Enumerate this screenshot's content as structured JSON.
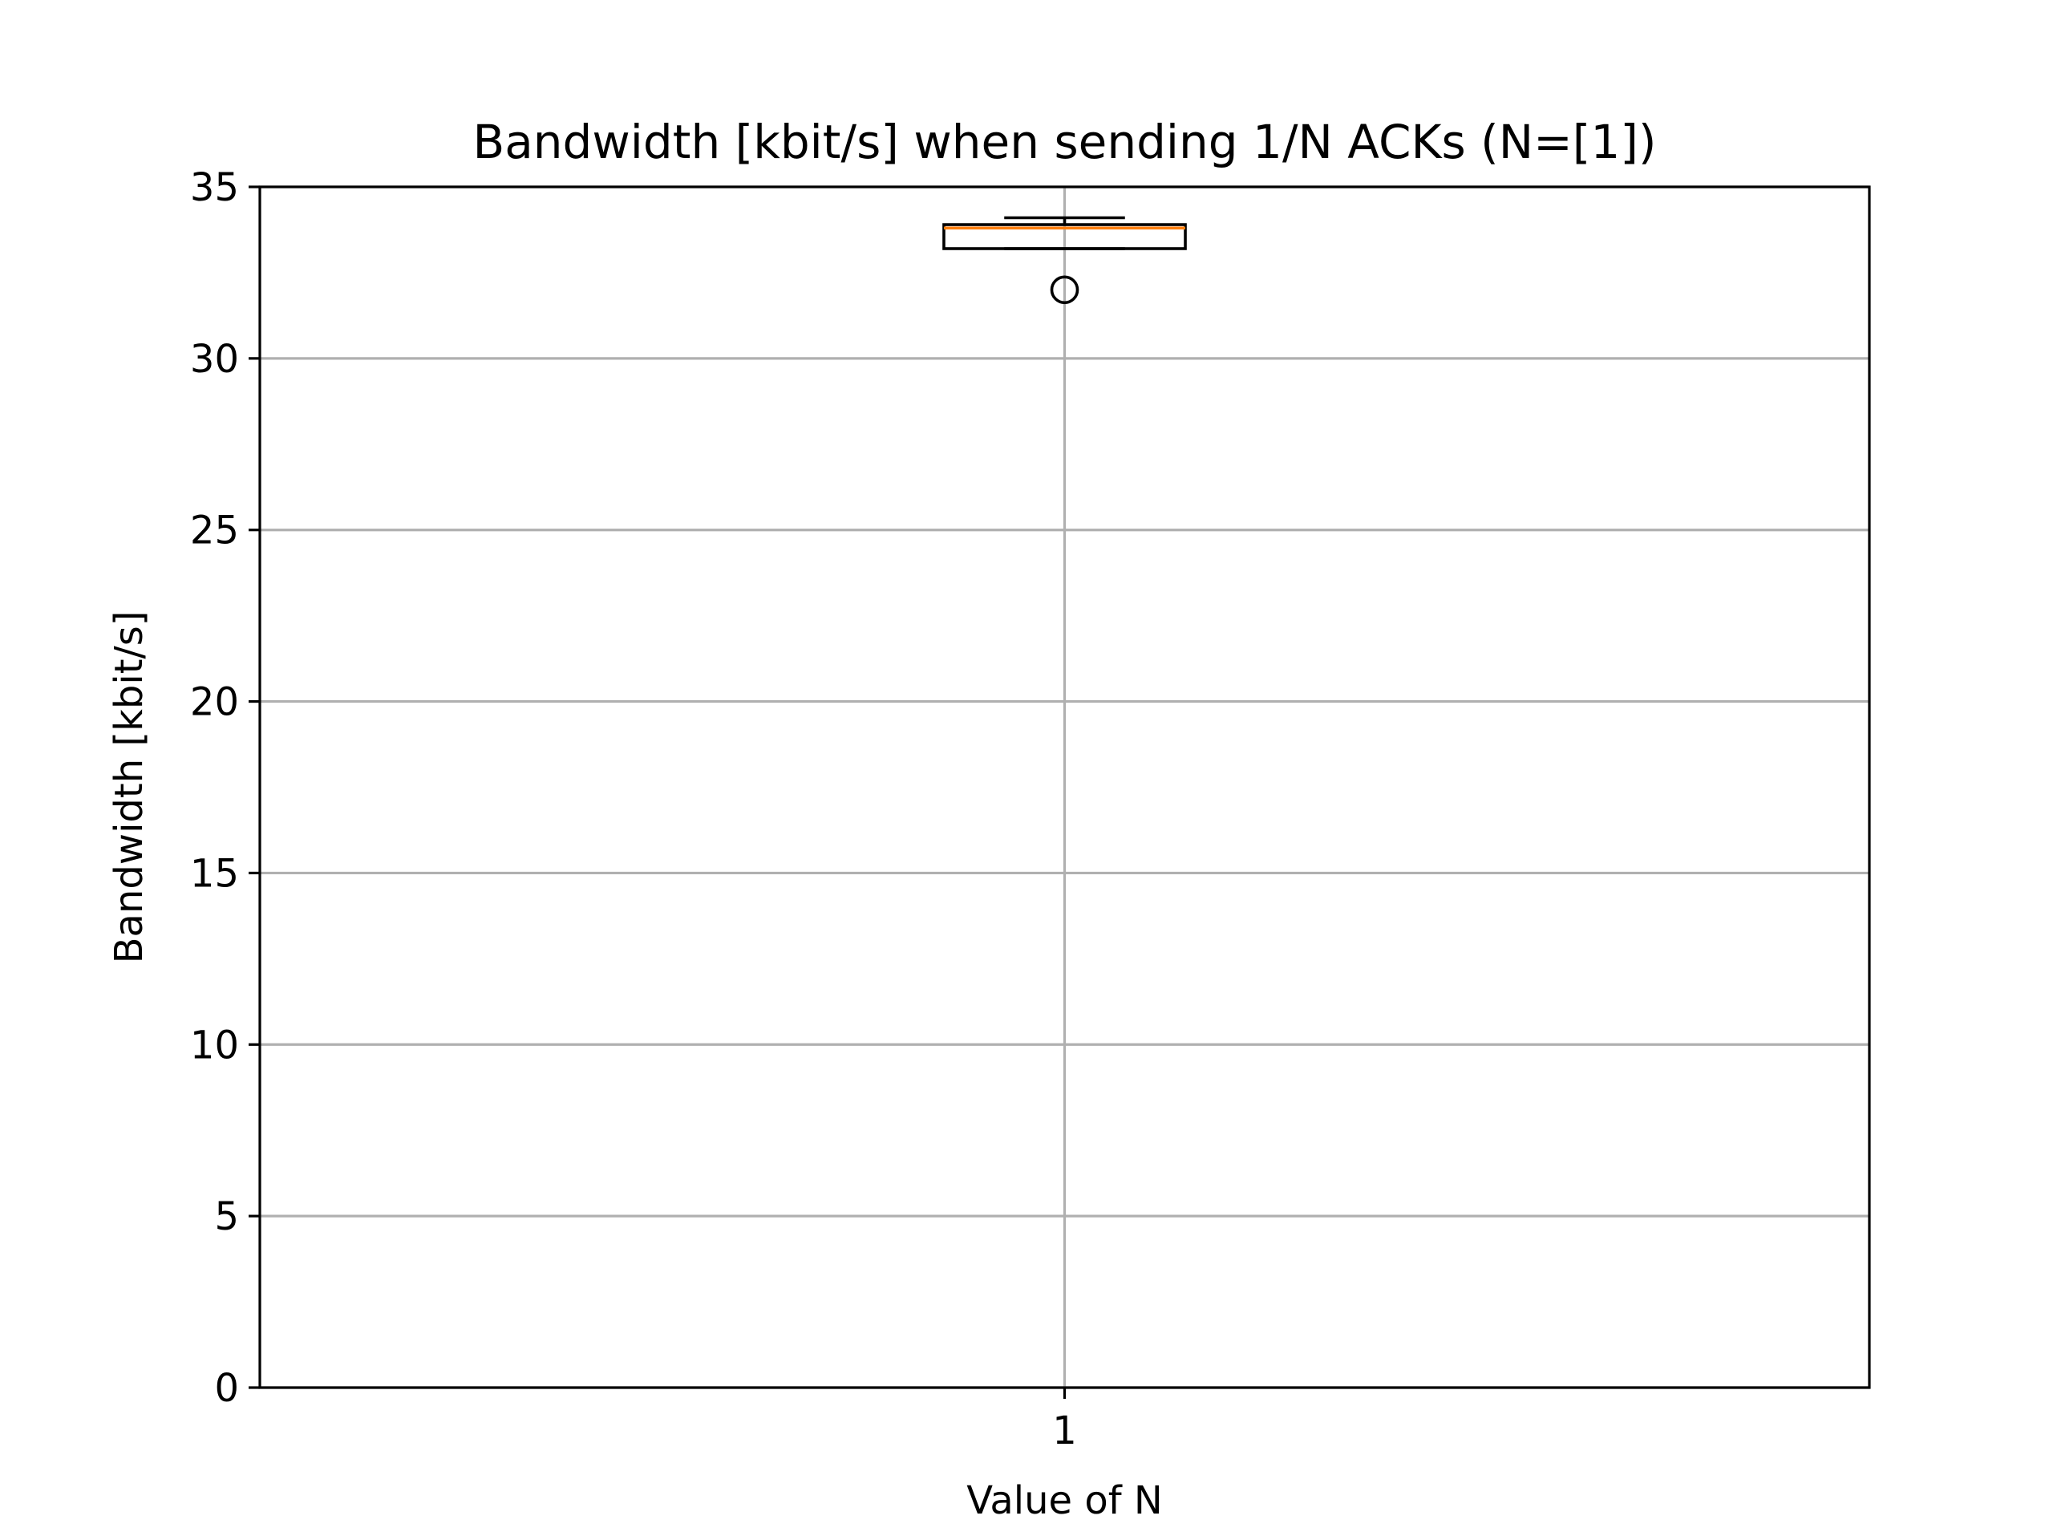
{
  "chart_data": {
    "type": "box",
    "title": "Bandwidth [kbit/s] when sending 1/N ACKs (N=[1])",
    "xlabel": "Value of N",
    "ylabel": "Bandwidth [kbit/s]",
    "categories": [
      "1"
    ],
    "ylim": [
      0,
      35
    ],
    "yticks": [
      0,
      5,
      10,
      15,
      20,
      25,
      30,
      35
    ],
    "yticklabels": [
      "0",
      "5",
      "10",
      "15",
      "20",
      "25",
      "30",
      "35"
    ],
    "grid": true,
    "boxes": [
      {
        "category": "1",
        "whisker_low": 33.2,
        "q1": 33.2,
        "median": 33.8,
        "q3": 33.9,
        "whisker_high": 34.1,
        "outliers": [
          32.0
        ]
      }
    ],
    "colors": {
      "box": "#000000",
      "median": "#ff7f0e",
      "grid": "#b0b0b0",
      "background": "#ffffff"
    }
  }
}
